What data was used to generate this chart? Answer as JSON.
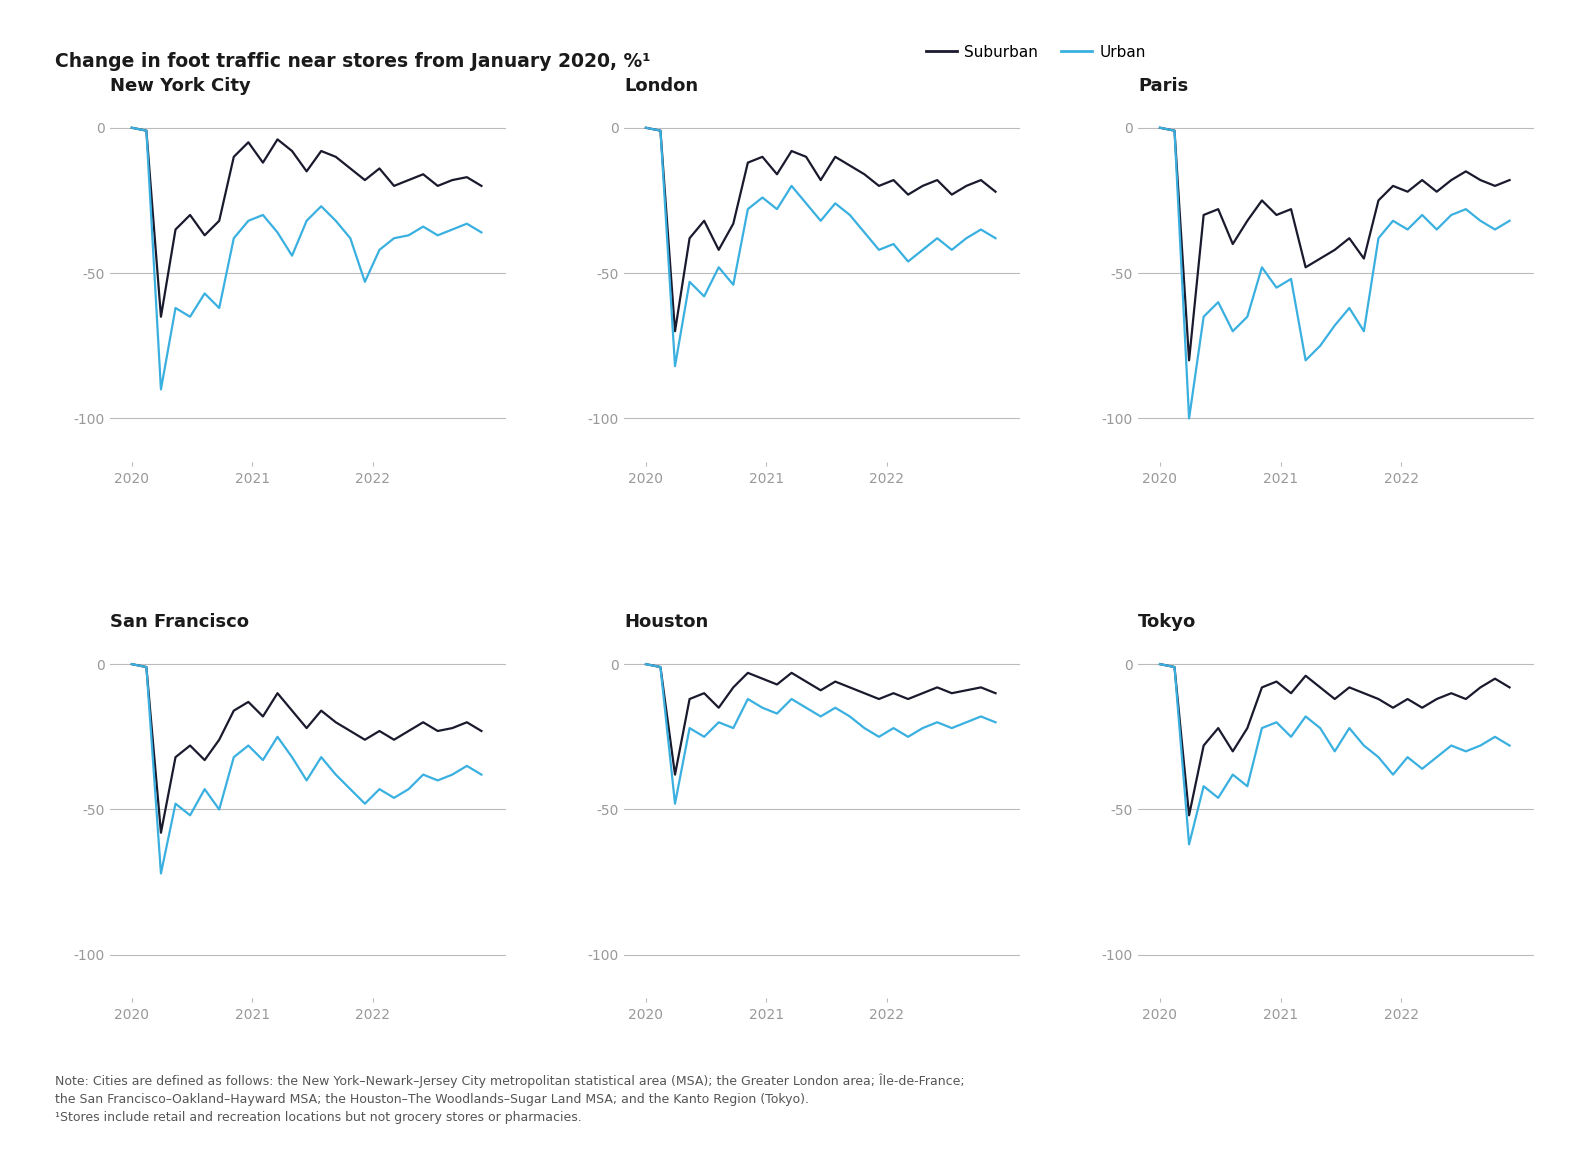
{
  "title_normal": "Change in foot traffic near stores from January 2020, ",
  "title_bold_part": "Change in foot traffic near stores from January 2020, ",
  "title": "Change in foot traffic near stores from January 2020, %¹",
  "background_color": "#ffffff",
  "suburban_color": "#1a1a2e",
  "urban_color": "#3ab0e0",
  "note": "Note: Cities are defined as follows: the New York–Newark–Jersey City metropolitan statistical area (MSA); the Greater London area; Île-de-France;\nthe San Francisco–Oakland–Hayward MSA; the Houston–The Woodlands–Sugar Land MSA; and the Kanto Region (Tokyo).\n¹Stores include retail and recreation locations but not grocery stores or pharmacies.",
  "legend_suburban": "Suburban",
  "legend_urban": "Urban",
  "cities": [
    "New York City",
    "London",
    "Paris",
    "San Francisco",
    "Houston",
    "Tokyo"
  ],
  "nyc_sub": [
    0,
    -1,
    -65,
    -35,
    -30,
    -37,
    -32,
    -10,
    -5,
    -12,
    -4,
    -8,
    -15,
    -8,
    -10,
    -14,
    -18,
    -14,
    -20,
    -18,
    -16,
    -20,
    -18,
    -17,
    -20
  ],
  "nyc_urb": [
    0,
    -1,
    -90,
    -62,
    -65,
    -57,
    -62,
    -38,
    -32,
    -30,
    -36,
    -44,
    -32,
    -27,
    -32,
    -38,
    -53,
    -42,
    -38,
    -37,
    -34,
    -37,
    -35,
    -33,
    -36
  ],
  "lon_sub": [
    0,
    -1,
    -70,
    -38,
    -32,
    -42,
    -33,
    -12,
    -10,
    -16,
    -8,
    -10,
    -18,
    -10,
    -13,
    -16,
    -20,
    -18,
    -23,
    -20,
    -18,
    -23,
    -20,
    -18,
    -22
  ],
  "lon_urb": [
    0,
    -1,
    -82,
    -53,
    -58,
    -48,
    -54,
    -28,
    -24,
    -28,
    -20,
    -26,
    -32,
    -26,
    -30,
    -36,
    -42,
    -40,
    -46,
    -42,
    -38,
    -42,
    -38,
    -35,
    -38
  ],
  "paris_sub": [
    0,
    -1,
    -80,
    -30,
    -28,
    -40,
    -32,
    -25,
    -30,
    -28,
    -48,
    -45,
    -42,
    -38,
    -45,
    -25,
    -20,
    -22,
    -18,
    -22,
    -18,
    -15,
    -18,
    -20,
    -18
  ],
  "paris_urb": [
    0,
    -1,
    -100,
    -65,
    -60,
    -70,
    -65,
    -48,
    -55,
    -52,
    -80,
    -75,
    -68,
    -62,
    -70,
    -38,
    -32,
    -35,
    -30,
    -35,
    -30,
    -28,
    -32,
    -35,
    -32
  ],
  "sf_sub": [
    0,
    -1,
    -58,
    -32,
    -28,
    -33,
    -26,
    -16,
    -13,
    -18,
    -10,
    -16,
    -22,
    -16,
    -20,
    -23,
    -26,
    -23,
    -26,
    -23,
    -20,
    -23,
    -22,
    -20,
    -23
  ],
  "sf_urb": [
    0,
    -1,
    -72,
    -48,
    -52,
    -43,
    -50,
    -32,
    -28,
    -33,
    -25,
    -32,
    -40,
    -32,
    -38,
    -43,
    -48,
    -43,
    -46,
    -43,
    -38,
    -40,
    -38,
    -35,
    -38
  ],
  "houston_sub": [
    0,
    -1,
    -38,
    -12,
    -10,
    -15,
    -8,
    -3,
    -5,
    -7,
    -3,
    -6,
    -9,
    -6,
    -8,
    -10,
    -12,
    -10,
    -12,
    -10,
    -8,
    -10,
    -9,
    -8,
    -10
  ],
  "houston_urb": [
    0,
    -1,
    -48,
    -22,
    -25,
    -20,
    -22,
    -12,
    -15,
    -17,
    -12,
    -15,
    -18,
    -15,
    -18,
    -22,
    -25,
    -22,
    -25,
    -22,
    -20,
    -22,
    -20,
    -18,
    -20
  ],
  "tokyo_sub": [
    0,
    -1,
    -52,
    -28,
    -22,
    -30,
    -22,
    -8,
    -6,
    -10,
    -4,
    -8,
    -12,
    -8,
    -10,
    -12,
    -15,
    -12,
    -15,
    -12,
    -10,
    -12,
    -8,
    -5,
    -8
  ],
  "tokyo_urb": [
    0,
    -1,
    -62,
    -42,
    -46,
    -38,
    -42,
    -22,
    -20,
    -25,
    -18,
    -22,
    -30,
    -22,
    -28,
    -32,
    -38,
    -32,
    -36,
    -32,
    -28,
    -30,
    -28,
    -25,
    -28
  ]
}
